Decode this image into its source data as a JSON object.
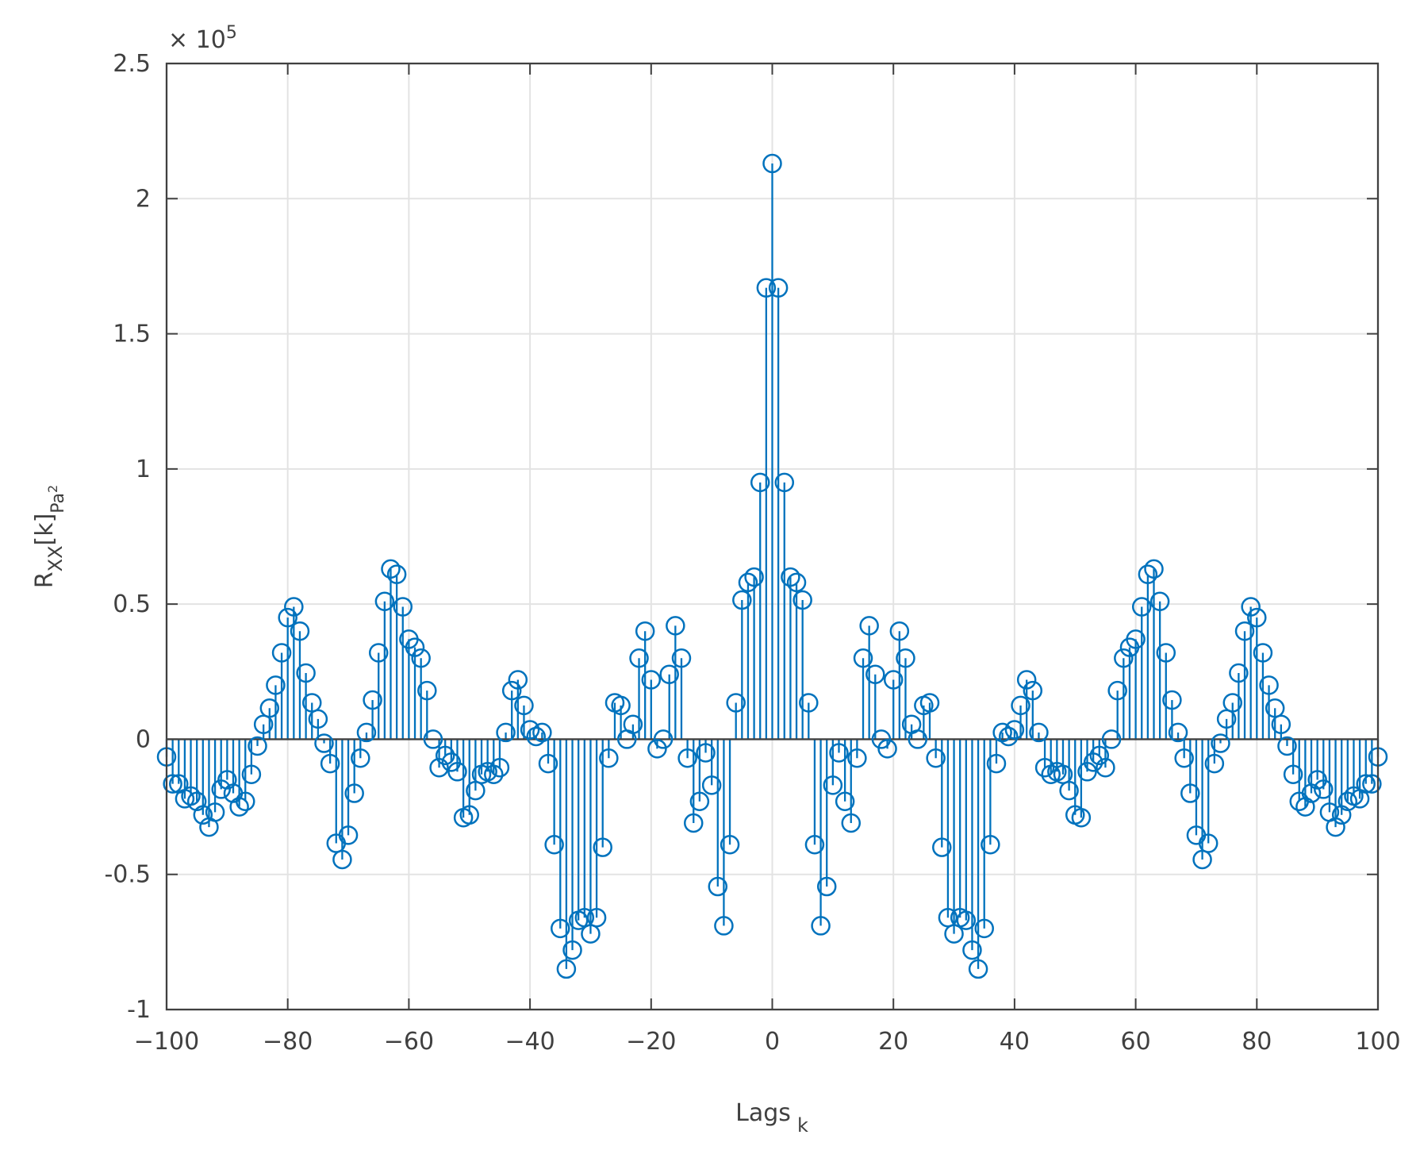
{
  "chart_data": {
    "type": "stem",
    "x_label": {
      "text": "Lags",
      "sub": "k"
    },
    "y_label": {
      "main": "R",
      "sub": "XX",
      "main2": "[k]",
      "unit": "Pa",
      "unit_sup": "2"
    },
    "y_exponent": {
      "base": "× 10",
      "power": "5"
    },
    "xlim": [
      -100,
      100
    ],
    "ylim": [
      -1,
      2.5
    ],
    "xticks": [
      {
        "value": -100,
        "label": "−100"
      },
      {
        "value": -80,
        "label": "−80"
      },
      {
        "value": -60,
        "label": "−60"
      },
      {
        "value": -40,
        "label": "−40"
      },
      {
        "value": -20,
        "label": "−20"
      },
      0,
      20,
      40,
      60,
      80,
      100
    ],
    "yticks": [
      -1,
      -0.5,
      0,
      0.5,
      1,
      1.5,
      2,
      2.5
    ],
    "grid": true,
    "series": [
      {
        "name": "Rxx",
        "color": "#0072bd",
        "x": [
          -100,
          -99,
          -98,
          -97,
          -96,
          -95,
          -94,
          -93,
          -92,
          -91,
          -90,
          -89,
          -88,
          -87,
          -86,
          -85,
          -84,
          -83,
          -82,
          -81,
          -80,
          -79,
          -78,
          -77,
          -76,
          -75,
          -74,
          -73,
          -72,
          -71,
          -70,
          -69,
          -68,
          -67,
          -66,
          -65,
          -64,
          -63,
          -62,
          -61,
          -60,
          -59,
          -58,
          -57,
          -56,
          -55,
          -54,
          -53,
          -52,
          -51,
          -50,
          -49,
          -48,
          -47,
          -46,
          -45,
          -44,
          -43,
          -42,
          -41,
          -40,
          -39,
          -38,
          -37,
          -36,
          -35,
          -34,
          -33,
          -32,
          -31,
          -30,
          -29,
          -28,
          -27,
          -26,
          -25,
          -24,
          -23,
          -22,
          -21,
          -20,
          -19,
          -18,
          -17,
          -16,
          -15,
          -14,
          -13,
          -12,
          -11,
          -10,
          -9,
          -8,
          -7,
          -6,
          -5,
          -4,
          -3,
          -2,
          -1,
          0,
          1,
          2,
          3,
          4,
          5,
          6,
          7,
          8,
          9,
          10,
          11,
          12,
          13,
          14,
          15,
          16,
          17,
          18,
          19,
          20,
          21,
          22,
          23,
          24,
          25,
          26,
          27,
          28,
          29,
          30,
          31,
          32,
          33,
          34,
          35,
          36,
          37,
          38,
          39,
          40,
          41,
          42,
          43,
          44,
          45,
          46,
          47,
          48,
          49,
          50,
          51,
          52,
          53,
          54,
          55,
          56,
          57,
          58,
          59,
          60,
          61,
          62,
          63,
          64,
          65,
          66,
          67,
          68,
          69,
          70,
          71,
          72,
          73,
          74,
          75,
          76,
          77,
          78,
          79,
          80,
          81,
          82,
          83,
          84,
          85,
          86,
          87,
          88,
          89,
          90,
          91,
          92,
          93,
          94,
          95,
          96,
          97,
          98,
          99,
          100
        ],
        "values": [
          -0.065,
          -0.165,
          -0.165,
          -0.22,
          -0.21,
          -0.23,
          -0.28,
          -0.325,
          -0.27,
          -0.185,
          -0.15,
          -0.2,
          -0.25,
          -0.23,
          -0.13,
          -0.025,
          0.055,
          0.115,
          0.2,
          0.32,
          0.45,
          0.49,
          0.4,
          0.245,
          0.135,
          0.075,
          -0.015,
          -0.09,
          -0.385,
          -0.445,
          -0.355,
          -0.2,
          -0.07,
          0.025,
          0.145,
          0.32,
          0.51,
          0.63,
          0.61,
          0.49,
          0.37,
          0.34,
          0.3,
          0.18,
          0.0,
          -0.105,
          -0.06,
          -0.085,
          -0.12,
          -0.29,
          -0.28,
          -0.19,
          -0.13,
          -0.12,
          -0.13,
          -0.105,
          0.025,
          0.18,
          0.22,
          0.125,
          0.035,
          0.01,
          0.025,
          -0.09,
          -0.39,
          -0.7,
          -0.85,
          -0.78,
          -0.67,
          -0.66,
          -0.72,
          -0.66,
          -0.4,
          -0.07,
          0.135,
          0.125,
          0.0,
          0.055,
          0.3,
          0.4,
          0.22,
          -0.035,
          0.0,
          0.24,
          0.42,
          0.3,
          -0.07,
          -0.31,
          -0.23,
          -0.05,
          -0.17,
          -0.545,
          -0.69,
          -0.39,
          0.135,
          0.515,
          0.58,
          0.6,
          0.95,
          1.67,
          2.13,
          1.67,
          0.95,
          0.6,
          0.58,
          0.515,
          0.135,
          -0.39,
          -0.69,
          -0.545,
          -0.17,
          -0.05,
          -0.23,
          -0.31,
          -0.07,
          0.3,
          0.42,
          0.24,
          0.0,
          -0.035,
          0.22,
          0.4,
          0.3,
          0.055,
          0.0,
          0.125,
          0.135,
          -0.07,
          -0.4,
          -0.66,
          -0.72,
          -0.66,
          -0.67,
          -0.78,
          -0.85,
          -0.7,
          -0.39,
          -0.09,
          0.025,
          0.01,
          0.035,
          0.125,
          0.22,
          0.18,
          0.025,
          -0.105,
          -0.13,
          -0.12,
          -0.13,
          -0.19,
          -0.28,
          -0.29,
          -0.12,
          -0.085,
          -0.06,
          -0.105,
          0.0,
          0.18,
          0.3,
          0.34,
          0.37,
          0.49,
          0.61,
          0.63,
          0.51,
          0.32,
          0.145,
          0.025,
          -0.07,
          -0.2,
          -0.355,
          -0.445,
          -0.385,
          -0.09,
          -0.015,
          0.075,
          0.135,
          0.245,
          0.4,
          0.49,
          0.45,
          0.32,
          0.2,
          0.115,
          0.055,
          -0.025,
          -0.13,
          -0.23,
          -0.25,
          -0.2,
          -0.15,
          -0.185,
          -0.27,
          -0.325,
          -0.28,
          -0.23,
          -0.21,
          -0.22,
          -0.165,
          -0.165,
          -0.065
        ]
      }
    ]
  }
}
